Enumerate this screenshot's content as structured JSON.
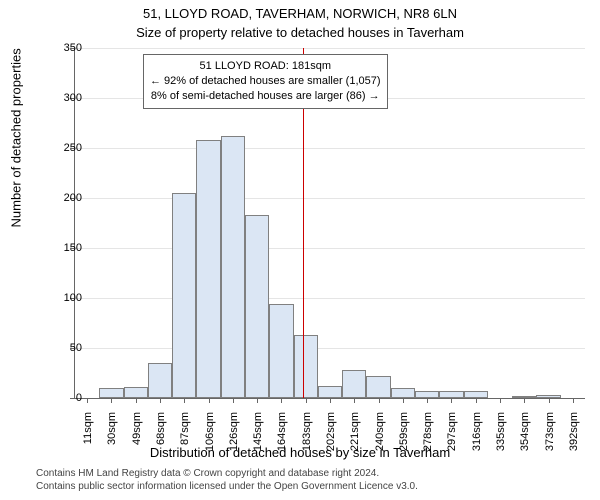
{
  "title_line1": "51, LLOYD ROAD, TAVERHAM, NORWICH, NR8 6LN",
  "title_line2": "Size of property relative to detached houses in Taverham",
  "y_axis_title": "Number of detached properties",
  "x_axis_title": "Distribution of detached houses by size in Taverham",
  "footer_line1": "Contains HM Land Registry data © Crown copyright and database right 2024.",
  "footer_line2": "Contains public sector information licensed under the Open Government Licence v3.0.",
  "info_box": {
    "line1": "51 LLOYD ROAD: 181sqm",
    "line2": "← 92% of detached houses are smaller (1,057)",
    "line3": "8% of semi-detached houses are larger (86) →"
  },
  "chart": {
    "type": "histogram",
    "bar_fill": "#dbe6f4",
    "bar_stroke": "#808080",
    "grid_color": "#e5e5e5",
    "axis_color": "#666666",
    "vline_color": "#cc0000",
    "vline_x_value": 181,
    "y_min": 0,
    "y_max": 350,
    "y_tick_step": 50,
    "x_labels": [
      "11sqm",
      "30sqm",
      "49sqm",
      "68sqm",
      "87sqm",
      "106sqm",
      "126sqm",
      "145sqm",
      "164sqm",
      "183sqm",
      "202sqm",
      "221sqm",
      "240sqm",
      "259sqm",
      "278sqm",
      "297sqm",
      "316sqm",
      "335sqm",
      "354sqm",
      "373sqm",
      "392sqm"
    ],
    "x_min": 11,
    "x_max": 392,
    "bars": [
      {
        "value": 0
      },
      {
        "value": 10
      },
      {
        "value": 11
      },
      {
        "value": 35
      },
      {
        "value": 205
      },
      {
        "value": 258
      },
      {
        "value": 262
      },
      {
        "value": 183
      },
      {
        "value": 94
      },
      {
        "value": 63
      },
      {
        "value": 12
      },
      {
        "value": 28
      },
      {
        "value": 22
      },
      {
        "value": 10
      },
      {
        "value": 7
      },
      {
        "value": 7
      },
      {
        "value": 7
      },
      {
        "value": 0
      },
      {
        "value": 2
      },
      {
        "value": 3
      },
      {
        "value": 0
      }
    ]
  }
}
